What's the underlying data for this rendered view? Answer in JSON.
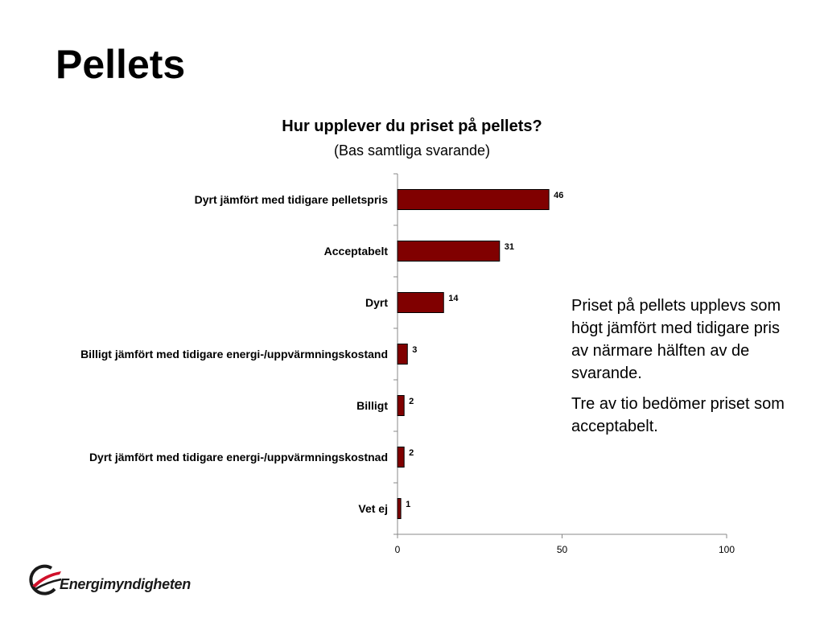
{
  "slide": {
    "title": "Pellets",
    "note_paragraphs": [
      "Priset på pellets upplevs som högt jämfört med tidigare pris av närmare hälften av de svarande.",
      "Tre av tio bedömer priset som acceptabelt."
    ],
    "logo_text": "Energimyndigheten"
  },
  "chart_data": {
    "type": "bar",
    "orientation": "horizontal",
    "title": "Hur upplever du priset på pellets?",
    "subtitle": "(Bas samtliga svarande)",
    "categories": [
      "Dyrt jämfört med tidigare pelletspris",
      "Acceptabelt",
      "Dyrt",
      "Billigt jämfört med tidigare energi-/uppvärmningskostand",
      "Billigt",
      "Dyrt jämfört med tidigare energi-/uppvärmningskostnad",
      "Vet ej"
    ],
    "values": [
      46,
      31,
      14,
      3,
      2,
      2,
      1
    ],
    "xlim": [
      0,
      100
    ],
    "xticks": [
      0,
      50,
      100
    ],
    "bar_color": "#800000",
    "grid": false,
    "legend": "none"
  }
}
